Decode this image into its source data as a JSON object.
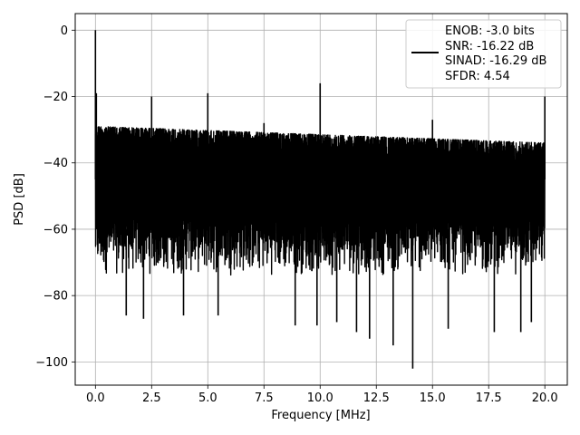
{
  "chart_data": {
    "type": "line",
    "xlabel": "Frequency [MHz]",
    "ylabel": "PSD [dB]",
    "xlim": [
      -0.9,
      21.0
    ],
    "ylim": [
      -107,
      5
    ],
    "xticks": [
      0.0,
      2.5,
      5.0,
      7.5,
      10.0,
      12.5,
      15.0,
      17.5,
      20.0
    ],
    "xtick_labels": [
      "0.0",
      "2.5",
      "5.0",
      "7.5",
      "10.0",
      "12.5",
      "15.0",
      "17.5",
      "20.0"
    ],
    "yticks": [
      0,
      -20,
      -40,
      -60,
      -80,
      -100
    ],
    "ytick_labels": [
      "0",
      "−20",
      "−40",
      "−60",
      "−80",
      "−100"
    ],
    "grid": true,
    "legend": {
      "placement": "top-right",
      "lines": [
        "ENOB: -3.0 bits",
        "SNR: -16.22 dB",
        "SINAD: -16.29 dB",
        "SFDR: 4.54"
      ]
    },
    "series": [
      {
        "color": "#000000",
        "x_range": [
          0.0,
          20.0
        ],
        "noise_band": {
          "top_at_start": -29,
          "top_at_end": -34,
          "dense_floor": -74,
          "sparse_dips": [
            {
              "x": 1.37,
              "y": -86
            },
            {
              "x": 2.14,
              "y": -87
            },
            {
              "x": 3.92,
              "y": -86
            },
            {
              "x": 5.46,
              "y": -86
            },
            {
              "x": 8.89,
              "y": -89
            },
            {
              "x": 9.86,
              "y": -89
            },
            {
              "x": 10.74,
              "y": -88
            },
            {
              "x": 11.62,
              "y": -91
            },
            {
              "x": 12.2,
              "y": -93
            },
            {
              "x": 13.25,
              "y": -95
            },
            {
              "x": 14.12,
              "y": -102
            },
            {
              "x": 15.7,
              "y": -90
            },
            {
              "x": 17.75,
              "y": -91
            },
            {
              "x": 18.93,
              "y": -91
            },
            {
              "x": 19.4,
              "y": -88
            }
          ]
        },
        "spurs": [
          {
            "x": 0.0,
            "y": 0
          },
          {
            "x": 0.04,
            "y": -19
          },
          {
            "x": 2.5,
            "y": -20
          },
          {
            "x": 5.0,
            "y": -19
          },
          {
            "x": 7.5,
            "y": -28
          },
          {
            "x": 10.0,
            "y": -16
          },
          {
            "x": 15.0,
            "y": -27
          },
          {
            "x": 20.0,
            "y": -20
          }
        ]
      }
    ]
  }
}
